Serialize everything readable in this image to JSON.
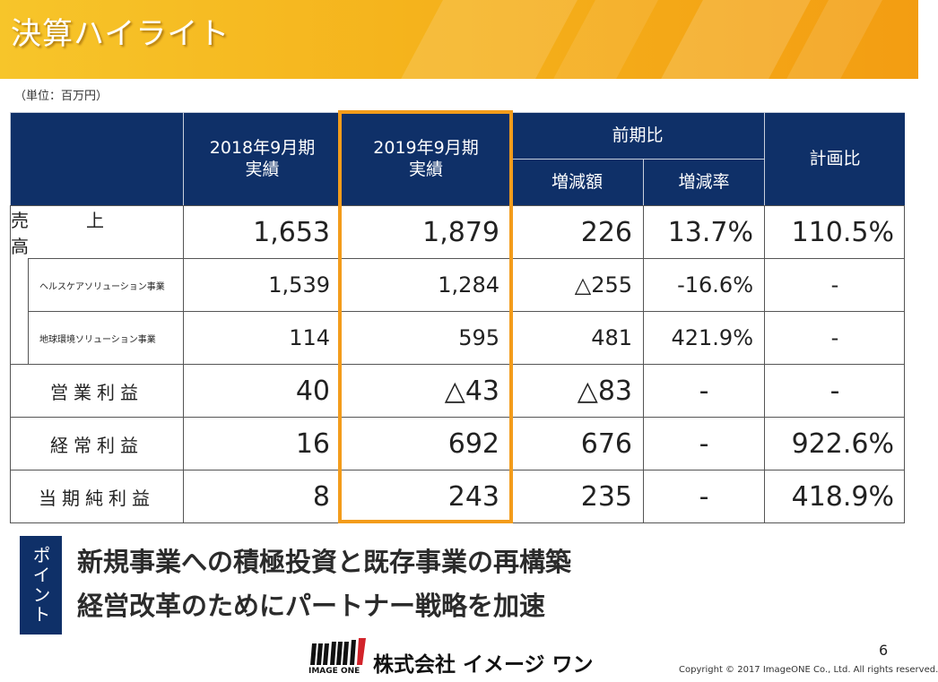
{
  "title": "決算ハイライト",
  "unit": "（単位：百万円）",
  "table": {
    "head": {
      "col_2018": [
        "2018年9月期",
        "実績"
      ],
      "col_2019": [
        "2019年9月期",
        "実績"
      ],
      "prev_ratio": "前期比",
      "change_amount": "増減額",
      "change_rate": "増減率",
      "plan_ratio": "計画比"
    },
    "rows": [
      {
        "label": "売　上　高",
        "v2018": "1,653",
        "v2019": "1,879",
        "diff": "226",
        "rate": "13.7%",
        "plan": "110.5%"
      },
      {
        "label": "ヘルスケアソリューション事業",
        "v2018": "1,539",
        "v2019": "1,284",
        "diff": "△255",
        "rate": "-16.6%",
        "plan": "-"
      },
      {
        "label": "地球環境ソリューション事業",
        "v2018": "114",
        "v2019": "595",
        "diff": "481",
        "rate": "421.9%",
        "plan": "-"
      },
      {
        "label": "営業利益",
        "v2018": "40",
        "v2019": "△43",
        "diff": "△83",
        "rate": "-",
        "plan": "-"
      },
      {
        "label": "経常利益",
        "v2018": "16",
        "v2019": "692",
        "diff": "676",
        "rate": "-",
        "plan": "922.6%"
      },
      {
        "label": "当期純利益",
        "v2018": "8",
        "v2019": "243",
        "diff": "235",
        "rate": "-",
        "plan": "418.9%"
      }
    ]
  },
  "point": {
    "tab_label": "ポイント",
    "line1": "新規事業への積極投資と既存事業の再構築",
    "line2": "経営改革のためにパートナー戦略を加速"
  },
  "footer": {
    "logo_text": "IMAGE ONE",
    "company": "株式会社 イメージ ワン",
    "page_number": "6",
    "copyright": "Copyright © 2017 ImageONE Co., Ltd. All rights reserved."
  },
  "colors": {
    "header_navy": "#0f3068",
    "highlight_orange": "#f39c1b",
    "banner_yellow": "#f7c52a"
  }
}
